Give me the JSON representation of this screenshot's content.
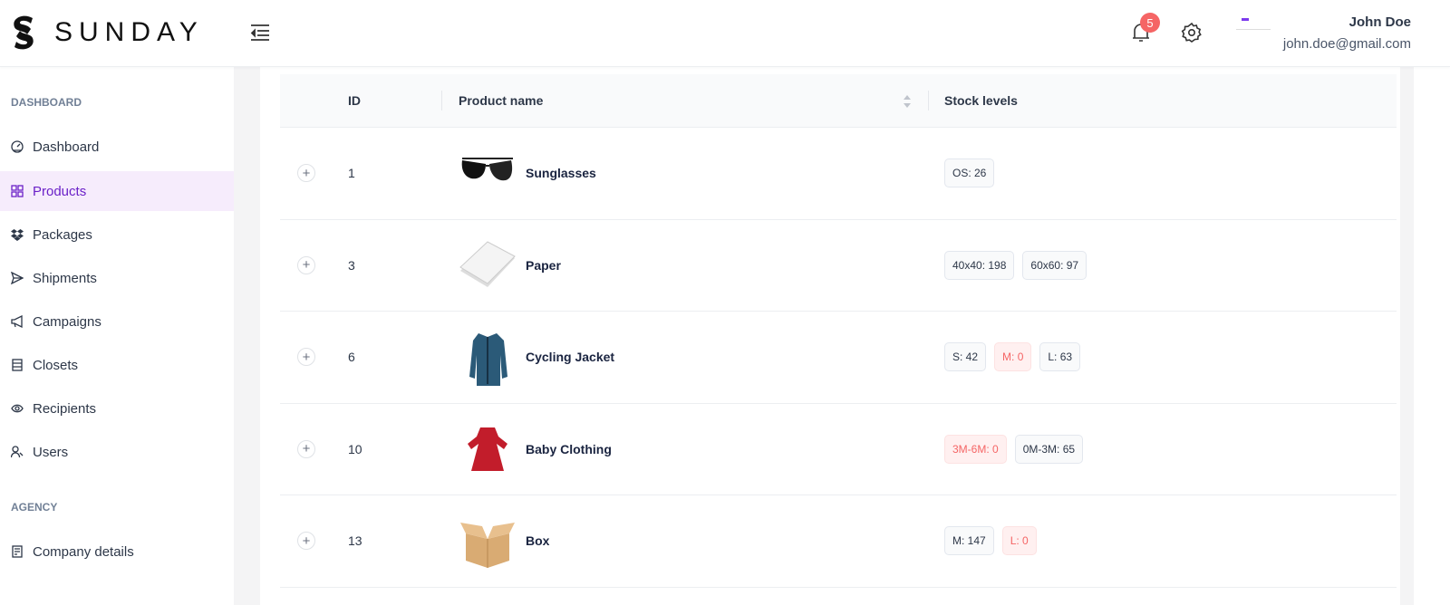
{
  "header": {
    "brand": "SUNDAY",
    "notifications": "5",
    "user_name": "John Doe",
    "user_email": "john.doe@gmail.com"
  },
  "sidebar": {
    "sections": [
      {
        "title": "DASHBOARD",
        "items": [
          {
            "label": "Dashboard",
            "icon": "gauge-icon"
          },
          {
            "label": "Products",
            "icon": "grid-icon",
            "active": true
          },
          {
            "label": "Packages",
            "icon": "dropbox-icon"
          },
          {
            "label": "Shipments",
            "icon": "send-icon"
          },
          {
            "label": "Campaigns",
            "icon": "megaphone-icon"
          },
          {
            "label": "Closets",
            "icon": "closet-icon"
          },
          {
            "label": "Recipients",
            "icon": "eye-icon"
          },
          {
            "label": "Users",
            "icon": "users-icon"
          }
        ]
      },
      {
        "title": "AGENCY",
        "items": [
          {
            "label": "Company details",
            "icon": "document-icon"
          }
        ]
      }
    ]
  },
  "table": {
    "columns": [
      "ID",
      "Product name",
      "Stock levels"
    ],
    "rows": [
      {
        "id": "1",
        "name": "Sunglasses",
        "image": "sunglasses",
        "stock": [
          {
            "label": "OS: 26",
            "zero": false
          }
        ]
      },
      {
        "id": "3",
        "name": "Paper",
        "image": "paper",
        "stock": [
          {
            "label": "40x40: 198",
            "zero": false
          },
          {
            "label": "60x60: 97",
            "zero": false
          }
        ]
      },
      {
        "id": "6",
        "name": "Cycling Jacket",
        "image": "jacket",
        "stock": [
          {
            "label": "S: 42",
            "zero": false
          },
          {
            "label": "M: 0",
            "zero": true
          },
          {
            "label": "L: 63",
            "zero": false
          }
        ]
      },
      {
        "id": "10",
        "name": "Baby Clothing",
        "image": "dress",
        "stock": [
          {
            "label": "3M-6M: 0",
            "zero": true
          },
          {
            "label": "0M-3M: 65",
            "zero": false
          }
        ]
      },
      {
        "id": "13",
        "name": "Box",
        "image": "box",
        "stock": [
          {
            "label": "M: 147",
            "zero": false
          },
          {
            "label": "L: 0",
            "zero": true
          }
        ]
      }
    ]
  },
  "colors": {
    "accent": "#6b21c8",
    "active_bg": "#f6ecfc",
    "danger": "#f56565",
    "badge": "#f56565"
  }
}
